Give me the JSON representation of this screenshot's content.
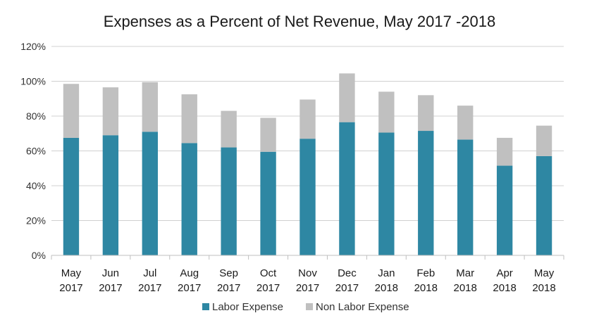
{
  "chart_data": {
    "type": "bar",
    "stacked": true,
    "title": "Expenses as a Percent of Net Revenue,  May 2017 -2018",
    "xlabel": "",
    "ylabel": "",
    "categories": [
      [
        "May",
        "2017"
      ],
      [
        "Jun",
        "2017"
      ],
      [
        "Jul",
        "2017"
      ],
      [
        "Aug",
        "2017"
      ],
      [
        "Sep",
        "2017"
      ],
      [
        "Oct",
        "2017"
      ],
      [
        "Nov",
        "2017"
      ],
      [
        "Dec",
        "2017"
      ],
      [
        "Jan",
        "2018"
      ],
      [
        "Feb",
        "2018"
      ],
      [
        "Mar",
        "2018"
      ],
      [
        "Apr",
        "2018"
      ],
      [
        "May",
        "2018"
      ]
    ],
    "series": [
      {
        "name": "Labor Expense",
        "color": "#2e87a3",
        "values": [
          67.5,
          69,
          71,
          64.5,
          62,
          59.5,
          67,
          76.5,
          70.5,
          71.5,
          66.5,
          51.5,
          57
        ]
      },
      {
        "name": "Non Labor Expense",
        "color": "#c0c0c0",
        "values": [
          31,
          27.5,
          28.5,
          28,
          21,
          19.5,
          22.5,
          28,
          23.5,
          20.5,
          19.5,
          16,
          17.5
        ]
      }
    ],
    "ylim": [
      0,
      120
    ],
    "yticks": [
      "0%",
      "20%",
      "40%",
      "60%",
      "80%",
      "100%",
      "120%"
    ],
    "ytick_values": [
      0,
      20,
      40,
      60,
      80,
      100,
      120
    ],
    "grid": true,
    "legend_position": "bottom"
  }
}
